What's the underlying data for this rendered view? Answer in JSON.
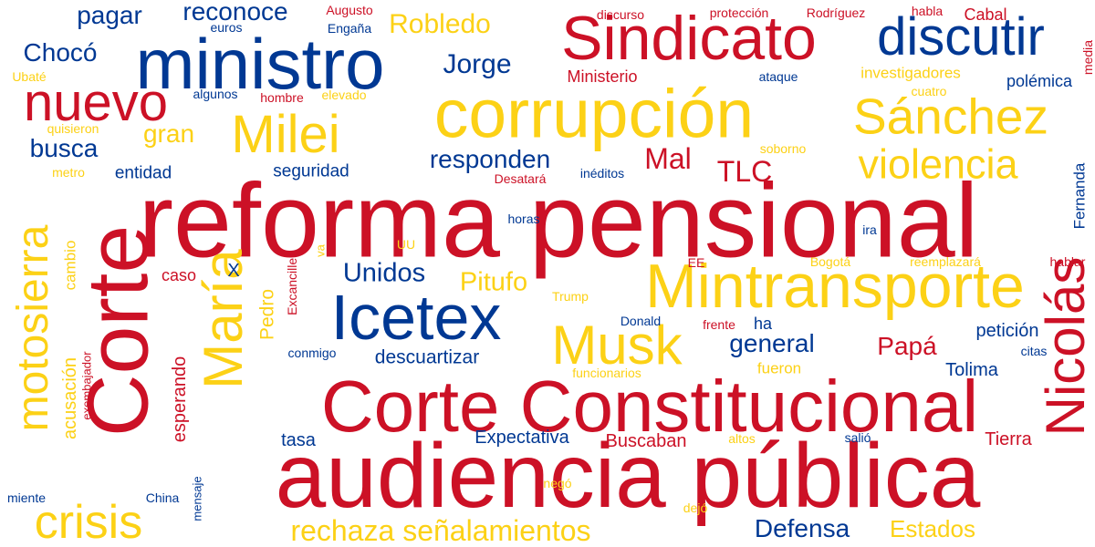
{
  "palette": {
    "red": "#cc1126",
    "blue": "#003893",
    "yellow": "#fcd116"
  },
  "words": [
    {
      "text": "reforma pensional",
      "color": "red",
      "vertical": false
    },
    {
      "text": "audiencia pública",
      "color": "red",
      "vertical": false
    },
    {
      "text": "Corte Constitucional",
      "color": "red",
      "vertical": false
    },
    {
      "text": "corrupción",
      "color": "yellow",
      "vertical": false
    },
    {
      "text": "Mintransporte",
      "color": "yellow",
      "vertical": false
    },
    {
      "text": "Corte",
      "color": "red",
      "vertical": true
    },
    {
      "text": "Sindicato",
      "color": "red",
      "vertical": false
    },
    {
      "text": "ministro",
      "color": "blue",
      "vertical": false
    },
    {
      "text": "Icetex",
      "color": "blue",
      "vertical": false
    },
    {
      "text": "Milei",
      "color": "yellow",
      "vertical": false
    },
    {
      "text": "Sánchez",
      "color": "yellow",
      "vertical": false
    },
    {
      "text": "discutir",
      "color": "blue",
      "vertical": false
    },
    {
      "text": "Musk",
      "color": "yellow",
      "vertical": false
    },
    {
      "text": "María",
      "color": "yellow",
      "vertical": true
    },
    {
      "text": "Nicolás",
      "color": "red",
      "vertical": true
    },
    {
      "text": "nuevo",
      "color": "red",
      "vertical": false
    },
    {
      "text": "violencia",
      "color": "yellow",
      "vertical": false
    },
    {
      "text": "motosierra",
      "color": "yellow",
      "vertical": true
    },
    {
      "text": "crisis",
      "color": "yellow",
      "vertical": false
    },
    {
      "text": "rechaza señalamientos",
      "color": "yellow",
      "vertical": false
    },
    {
      "text": "Robledo",
      "color": "yellow",
      "vertical": false
    },
    {
      "text": "Jorge",
      "color": "blue",
      "vertical": false
    },
    {
      "text": "Chocó",
      "color": "blue",
      "vertical": false
    },
    {
      "text": "pagar",
      "color": "blue",
      "vertical": false
    },
    {
      "text": "reconoce",
      "color": "blue",
      "vertical": false
    },
    {
      "text": "busca",
      "color": "blue",
      "vertical": false
    },
    {
      "text": "gran",
      "color": "yellow",
      "vertical": false
    },
    {
      "text": "responden",
      "color": "blue",
      "vertical": false
    },
    {
      "text": "Mal",
      "color": "red",
      "vertical": false
    },
    {
      "text": "TLC",
      "color": "red",
      "vertical": false
    },
    {
      "text": "Unidos",
      "color": "blue",
      "vertical": false
    },
    {
      "text": "Pitufo",
      "color": "yellow",
      "vertical": false
    },
    {
      "text": "general",
      "color": "blue",
      "vertical": false
    },
    {
      "text": "Papá",
      "color": "red",
      "vertical": false
    },
    {
      "text": "Defensa",
      "color": "blue",
      "vertical": false
    },
    {
      "text": "Estados",
      "color": "yellow",
      "vertical": false
    },
    {
      "text": "Tolima",
      "color": "blue",
      "vertical": false
    },
    {
      "text": "petición",
      "color": "blue",
      "vertical": false
    },
    {
      "text": "Expectativa",
      "color": "blue",
      "vertical": false
    },
    {
      "text": "Buscaban",
      "color": "red",
      "vertical": false
    },
    {
      "text": "Tierra",
      "color": "red",
      "vertical": false
    },
    {
      "text": "descuartizar",
      "color": "blue",
      "vertical": false
    },
    {
      "text": "seguridad",
      "color": "blue",
      "vertical": false
    },
    {
      "text": "entidad",
      "color": "blue",
      "vertical": false
    },
    {
      "text": "esperando",
      "color": "red",
      "vertical": true
    },
    {
      "text": "acusación",
      "color": "yellow",
      "vertical": true
    },
    {
      "text": "Pedro",
      "color": "yellow",
      "vertical": true
    },
    {
      "text": "Ministerio",
      "color": "red",
      "vertical": false
    },
    {
      "text": "investigadores",
      "color": "yellow",
      "vertical": false
    },
    {
      "text": "polémica",
      "color": "blue",
      "vertical": false
    },
    {
      "text": "Cabal",
      "color": "red",
      "vertical": false
    },
    {
      "text": "Fernanda",
      "color": "blue",
      "vertical": true
    },
    {
      "text": "tasa",
      "color": "blue",
      "vertical": false
    },
    {
      "text": "caso",
      "color": "red",
      "vertical": false
    },
    {
      "text": "ha",
      "color": "blue",
      "vertical": false
    },
    {
      "text": "X",
      "color": "blue",
      "vertical": false
    },
    {
      "text": "cambio",
      "color": "yellow",
      "vertical": true
    },
    {
      "text": "fueron",
      "color": "yellow",
      "vertical": false
    },
    {
      "text": "Augusto",
      "color": "red",
      "vertical": false
    },
    {
      "text": "Engaña",
      "color": "blue",
      "vertical": false
    },
    {
      "text": "euros",
      "color": "blue",
      "vertical": false
    },
    {
      "text": "discurso",
      "color": "red",
      "vertical": false
    },
    {
      "text": "protección",
      "color": "red",
      "vertical": false
    },
    {
      "text": "Rodríguez",
      "color": "red",
      "vertical": false
    },
    {
      "text": "habla",
      "color": "red",
      "vertical": false
    },
    {
      "text": "media",
      "color": "red",
      "vertical": true
    },
    {
      "text": "Ubaté",
      "color": "yellow",
      "vertical": false
    },
    {
      "text": "ataque",
      "color": "blue",
      "vertical": false
    },
    {
      "text": "algunos",
      "color": "blue",
      "vertical": false
    },
    {
      "text": "hombre",
      "color": "red",
      "vertical": false
    },
    {
      "text": "elevado",
      "color": "yellow",
      "vertical": false
    },
    {
      "text": "cuatro",
      "color": "yellow",
      "vertical": false
    },
    {
      "text": "quisieron",
      "color": "yellow",
      "vertical": false
    },
    {
      "text": "soborno",
      "color": "yellow",
      "vertical": false
    },
    {
      "text": "metro",
      "color": "yellow",
      "vertical": false
    },
    {
      "text": "Desatará",
      "color": "red",
      "vertical": false
    },
    {
      "text": "inéditos",
      "color": "blue",
      "vertical": false
    },
    {
      "text": "horas",
      "color": "blue",
      "vertical": false
    },
    {
      "text": "ira",
      "color": "blue",
      "vertical": false
    },
    {
      "text": "UU",
      "color": "yellow",
      "vertical": false
    },
    {
      "text": "va",
      "color": "yellow",
      "vertical": true
    },
    {
      "text": "Excanciller",
      "color": "red",
      "vertical": true
    },
    {
      "text": "EE",
      "color": "red",
      "vertical": false
    },
    {
      "text": "Bogotá",
      "color": "yellow",
      "vertical": false
    },
    {
      "text": "reemplazará",
      "color": "yellow",
      "vertical": false
    },
    {
      "text": "hablar",
      "color": "red",
      "vertical": false
    },
    {
      "text": "Trump",
      "color": "yellow",
      "vertical": false
    },
    {
      "text": "Donald",
      "color": "blue",
      "vertical": false
    },
    {
      "text": "frente",
      "color": "red",
      "vertical": false
    },
    {
      "text": "conmigo",
      "color": "blue",
      "vertical": false
    },
    {
      "text": "citas",
      "color": "blue",
      "vertical": false
    },
    {
      "text": "funcionarios",
      "color": "yellow",
      "vertical": false
    },
    {
      "text": "exembajador",
      "color": "red",
      "vertical": true
    },
    {
      "text": "altos",
      "color": "yellow",
      "vertical": false
    },
    {
      "text": "salió",
      "color": "blue",
      "vertical": false
    },
    {
      "text": "negó",
      "color": "yellow",
      "vertical": false
    },
    {
      "text": "mensaje",
      "color": "blue",
      "vertical": true
    },
    {
      "text": "China",
      "color": "blue",
      "vertical": false
    },
    {
      "text": "miente",
      "color": "blue",
      "vertical": false
    },
    {
      "text": "dejó",
      "color": "yellow",
      "vertical": false
    }
  ]
}
